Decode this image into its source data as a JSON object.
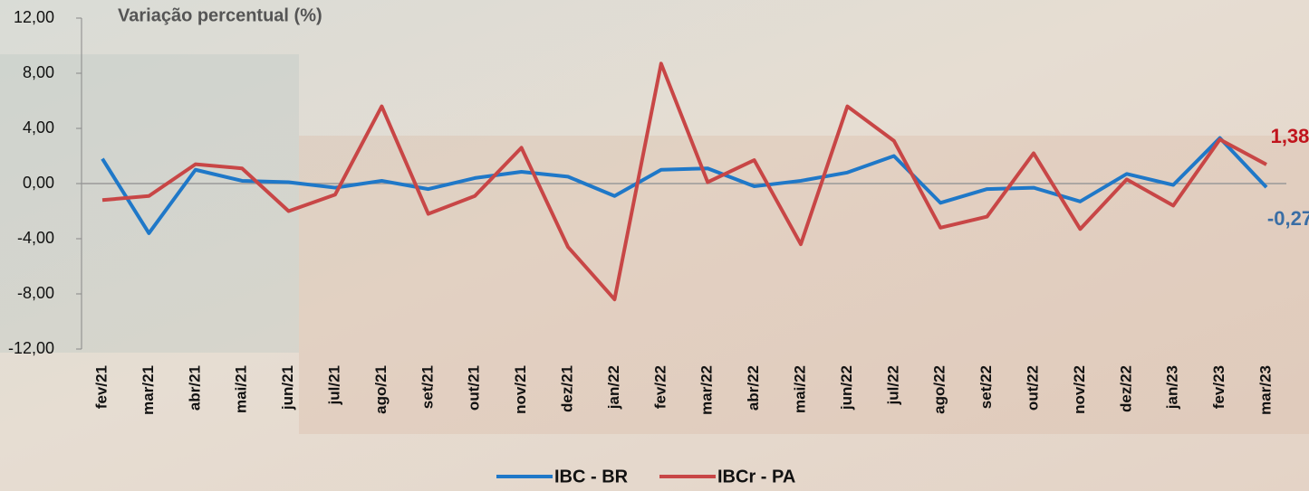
{
  "chart_data": {
    "type": "line",
    "title": "Variação percentual (%)",
    "categories": [
      "fev/21",
      "mar/21",
      "abr/21",
      "mai/21",
      "jun/21",
      "jul/21",
      "ago/21",
      "set/21",
      "out/21",
      "nov/21",
      "dez/21",
      "jan/22",
      "fev/22",
      "mar/22",
      "abr/22",
      "mai/22",
      "jun/22",
      "jul/22",
      "ago/22",
      "set/22",
      "out/22",
      "nov/22",
      "dez/22",
      "jan/23",
      "fev/23",
      "mar/23"
    ],
    "series": [
      {
        "name": "IBC - BR",
        "color": "#1f78c8",
        "values": [
          1.8,
          -3.6,
          1.0,
          0.2,
          0.1,
          -0.3,
          0.2,
          -0.4,
          0.4,
          0.85,
          0.5,
          -0.9,
          1.0,
          1.1,
          -0.2,
          0.2,
          0.8,
          2.0,
          -1.4,
          -0.4,
          -0.3,
          -1.3,
          0.7,
          -0.1,
          3.3,
          -0.27
        ],
        "value_labels": [
          null,
          null,
          null,
          null,
          null,
          null,
          null,
          null,
          null,
          null,
          null,
          null,
          null,
          null,
          null,
          null,
          null,
          null,
          null,
          null,
          null,
          null,
          null,
          null,
          null,
          "-0,27"
        ]
      },
      {
        "name": "IBCr - PA",
        "color": "#c84646",
        "values": [
          -1.2,
          -0.9,
          1.4,
          1.1,
          -2.0,
          -0.8,
          5.6,
          -2.2,
          -0.9,
          2.6,
          -4.6,
          -8.4,
          8.7,
          0.1,
          1.7,
          -4.4,
          5.6,
          3.1,
          -3.2,
          -2.4,
          2.2,
          -3.3,
          0.3,
          -1.6,
          3.2,
          1.38
        ],
        "value_labels": [
          null,
          null,
          null,
          null,
          null,
          null,
          null,
          null,
          null,
          null,
          null,
          null,
          null,
          null,
          null,
          null,
          null,
          null,
          null,
          null,
          null,
          null,
          null,
          null,
          null,
          "1,38"
        ]
      }
    ],
    "ylim": [
      -12,
      12
    ],
    "yticks": [
      {
        "value": -12,
        "label": "-12,00"
      },
      {
        "value": -8,
        "label": "-8,00"
      },
      {
        "value": -4,
        "label": "-4,00"
      },
      {
        "value": 0,
        "label": "0,00"
      },
      {
        "value": 4,
        "label": "4,00"
      },
      {
        "value": 8,
        "label": "8,00"
      },
      {
        "value": 12,
        "label": "12,00"
      }
    ],
    "legend": "bottom"
  }
}
